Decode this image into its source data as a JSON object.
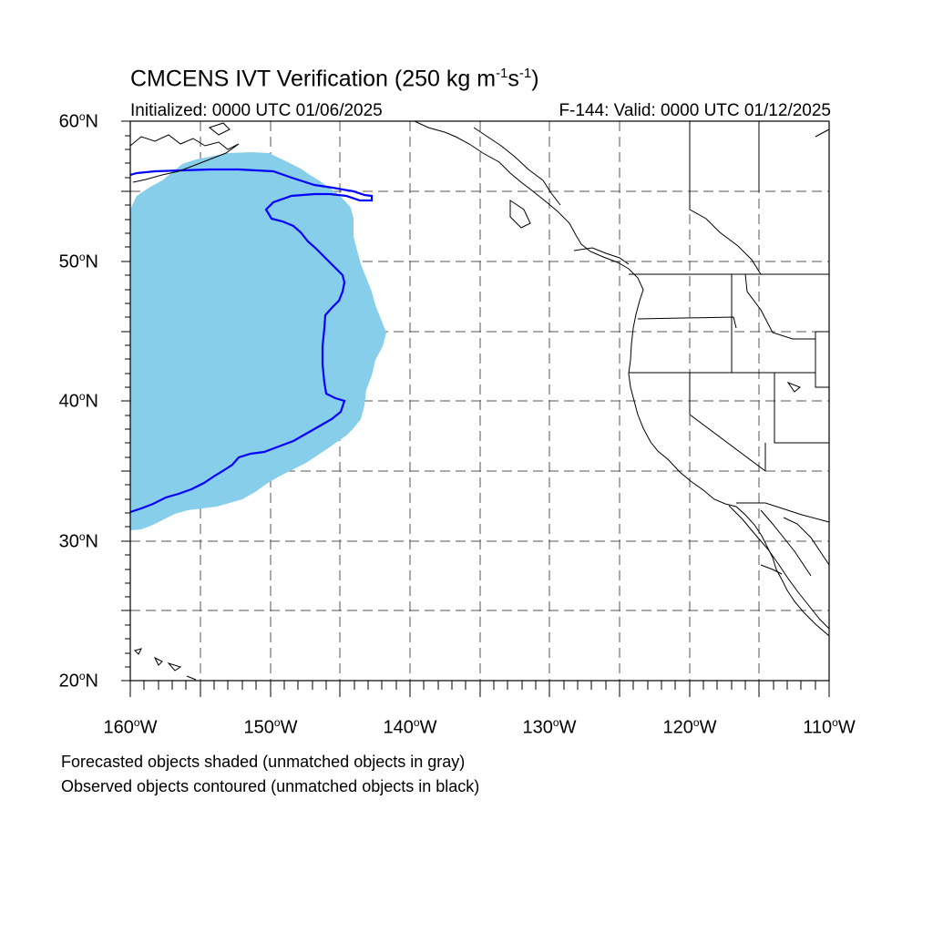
{
  "title": {
    "main": "CMCENS IVT Verification (250 kg m",
    "exp1": "-1",
    "mid": "s",
    "exp2": "-1",
    "end": ")"
  },
  "initialized": "Initialized: 0000 UTC 01/06/2025",
  "valid": "F-144: Valid: 0000 UTC 01/12/2025",
  "lat_labels": [
    {
      "value": "60",
      "deg": "o",
      "hem": "N"
    },
    {
      "value": "50",
      "deg": "o",
      "hem": "N"
    },
    {
      "value": "40",
      "deg": "o",
      "hem": "N"
    },
    {
      "value": "30",
      "deg": "o",
      "hem": "N"
    },
    {
      "value": "20",
      "deg": "o",
      "hem": "N"
    }
  ],
  "lon_labels": [
    {
      "value": "160",
      "deg": "o",
      "hem": "W"
    },
    {
      "value": "150",
      "deg": "o",
      "hem": "W"
    },
    {
      "value": "140",
      "deg": "o",
      "hem": "W"
    },
    {
      "value": "130",
      "deg": "o",
      "hem": "W"
    },
    {
      "value": "120",
      "deg": "o",
      "hem": "W"
    },
    {
      "value": "110",
      "deg": "o",
      "hem": "W"
    }
  ],
  "notes": [
    "Forecasted objects shaded (unmatched objects in gray)",
    "Observed objects contoured (unmatched objects in black)"
  ],
  "colors": {
    "forecast_fill": "#87ceeb",
    "observed_contour": "#0000ff",
    "coastline": "#000000",
    "grid": "#555555"
  }
}
